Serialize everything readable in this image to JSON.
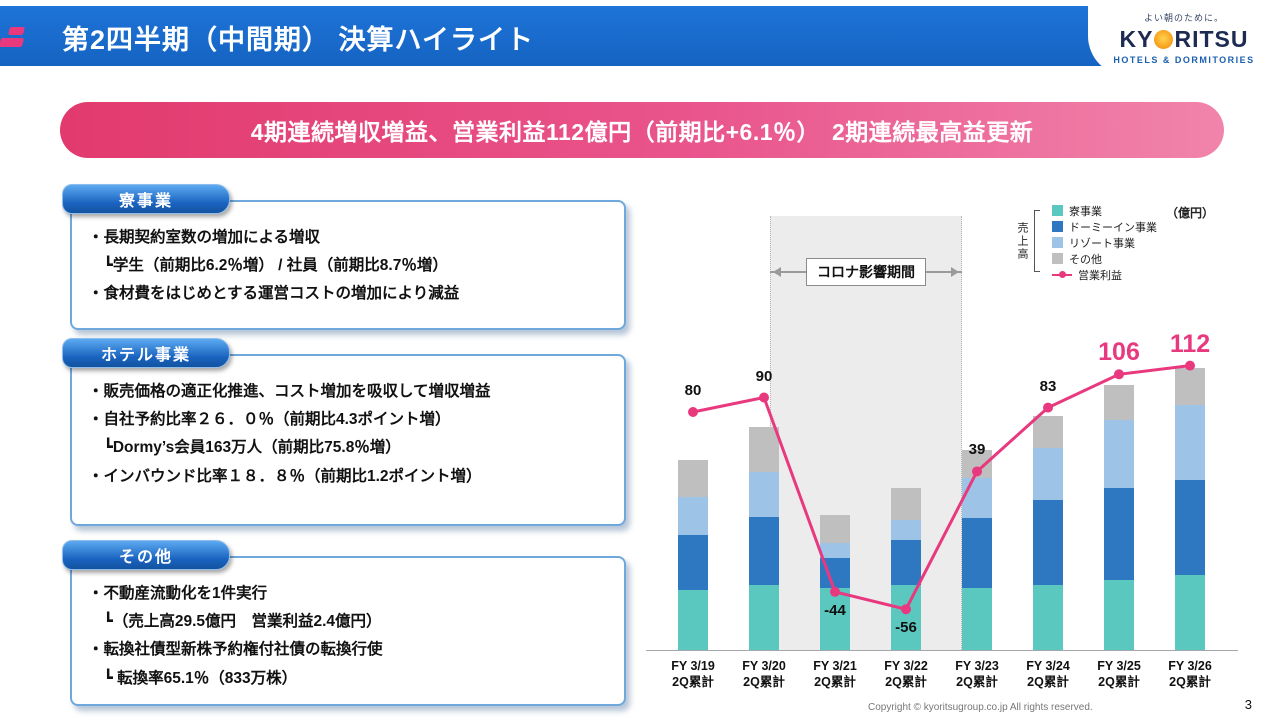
{
  "header": {
    "title": "第2四半期（中間期） 決算ハイライト"
  },
  "logo": {
    "tagline": "よい朝のために。",
    "name_left": "KY",
    "name_right": "RITSU",
    "sun_icon": "sun-icon",
    "subtitle": "HOTELS & DORMITORIES"
  },
  "banner": {
    "text": "4期連続増収増益、営業利益112億円（前期比+6.1％）　2期連続最高益更新"
  },
  "sections": [
    {
      "title": "寮事業",
      "lines": [
        "・長期契約室数の増加による増収",
        "　┗学生（前期比6.2％増） / 社員（前期比8.7％増）",
        "・食材費をはじめとする運営コストの増加により減益"
      ]
    },
    {
      "title": "ホテル事業",
      "lines": [
        "・販売価格の適正化推進、コスト増加を吸収して増収増益",
        "・自社予約比率２６．０％（前期比4.3ポイント増）",
        "　┗Dormy’s会員163万人（前期比75.8％増）",
        "・インバウンド比率１８．８％（前期比1.2ポイント増）"
      ]
    },
    {
      "title": "その他",
      "lines": [
        "・不動産流動化を1件実行",
        "　┗（売上高29.5億円　営業利益2.4億円）",
        "・転換社債型新株予約権付社債の転換行使",
        "　┗ 転換率65.1％（833万株）"
      ]
    }
  ],
  "chart_data": {
    "type": "bar",
    "subtype": "stacked-bar-with-line",
    "unit_label": "（億円）",
    "group_axis_label": "売上高",
    "legend_position": "top-right",
    "covid_band": {
      "label": "コロナ影響期間",
      "from": "FY 3/21",
      "to": "FY 3/22"
    },
    "categories": [
      [
        "FY 3/19",
        "2Q累計"
      ],
      [
        "FY 3/20",
        "2Q累計"
      ],
      [
        "FY 3/21",
        "2Q累計"
      ],
      [
        "FY 3/22",
        "2Q累計"
      ],
      [
        "FY 3/23",
        "2Q累計"
      ],
      [
        "FY 3/24",
        "2Q累計"
      ],
      [
        "FY 3/25",
        "2Q累計"
      ],
      [
        "FY 3/26",
        "2Q累計"
      ]
    ],
    "bar_series": [
      {
        "name": "寮事業",
        "color": "#5bc8c0",
        "values": [
          60,
          65,
          62,
          65,
          62,
          65,
          70,
          75
        ]
      },
      {
        "name": "ドーミーイン事業",
        "color": "#2e78c2",
        "values": [
          55,
          68,
          30,
          45,
          70,
          85,
          92,
          95
        ]
      },
      {
        "name": "リゾート事業",
        "color": "#9dc3e6",
        "values": [
          38,
          45,
          15,
          20,
          40,
          52,
          68,
          75
        ]
      },
      {
        "name": "その他",
        "color": "#bfbfbf",
        "values": [
          37,
          45,
          28,
          32,
          28,
          32,
          35,
          37
        ]
      }
    ],
    "line_series": {
      "name": "営業利益",
      "color": "#e8397f",
      "values": [
        80,
        90,
        -44,
        -56,
        39,
        83,
        106,
        112
      ],
      "highlight_indices": [
        6,
        7
      ]
    }
  },
  "footer": {
    "copyright": "Copyright © kyoritsugroup.co.jp All rights reserved.",
    "page_number": "3"
  },
  "colors": {
    "header_blue": "#1667c8",
    "banner_pink": "#e23a6e",
    "accent_pink": "#e8397f",
    "panel_border_blue": "#6fa8dc",
    "covid_band_gray": "#ececec"
  }
}
